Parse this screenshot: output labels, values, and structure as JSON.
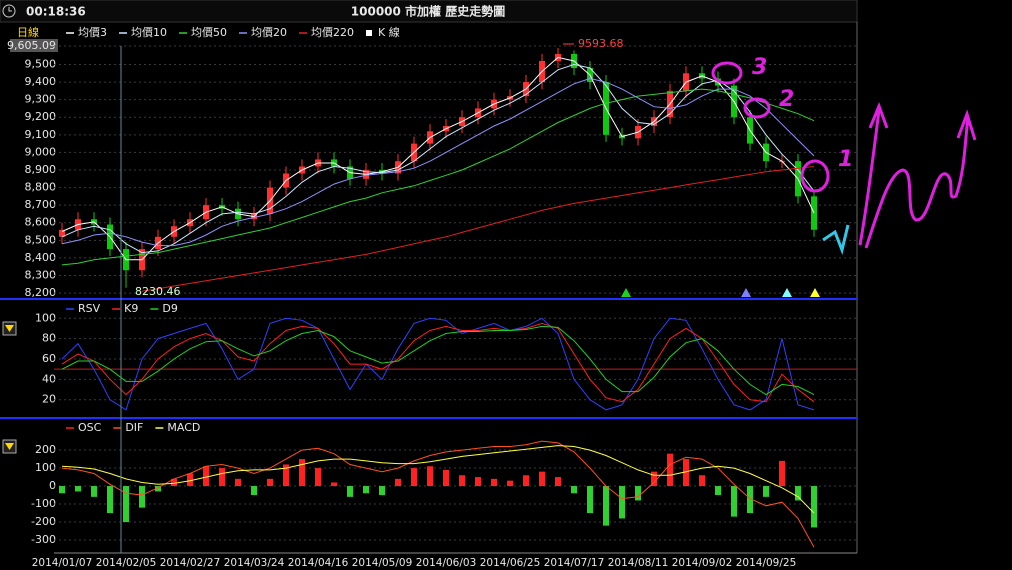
{
  "header": {
    "time": "00:18:36",
    "title": "100000 市加權  歷史走勢圖"
  },
  "handwriting": [
    "3",
    "2",
    "1"
  ],
  "chart_data": [
    {
      "type": "candlestick",
      "label": "日線",
      "grid": true,
      "annotations": [
        "9593.68",
        "8230.46"
      ],
      "categories": [
        "2014/01/07",
        null,
        null,
        null,
        "2014/02/05",
        null,
        null,
        null,
        "2014/02/27",
        null,
        null,
        null,
        "2014/03/24",
        null,
        null,
        null,
        "2014/04/16",
        null,
        null,
        null,
        "2014/05/09",
        null,
        null,
        null,
        "2014/06/03",
        null,
        null,
        null,
        "2014/06/25",
        null,
        null,
        null,
        "2014/07/17",
        null,
        null,
        null,
        "2014/08/11",
        null,
        null,
        null,
        "2014/09/02",
        null,
        null,
        null,
        "2014/09/25",
        null,
        null,
        null
      ],
      "ylim": [
        8172,
        9605.09
      ],
      "yticks": [
        {
          "value": 8200,
          "label": "8,200"
        },
        {
          "value": 8300,
          "label": "8,300"
        },
        {
          "value": 8400,
          "label": "8,400"
        },
        {
          "value": 8500,
          "label": "8,500"
        },
        {
          "value": 8600,
          "label": "8,600"
        },
        {
          "value": 8700,
          "label": "8,700"
        },
        {
          "value": 8800,
          "label": "8,800"
        },
        {
          "value": 8900,
          "label": "8,900"
        },
        {
          "value": 9000,
          "label": "9,000"
        },
        {
          "value": 9100,
          "label": "9,100"
        },
        {
          "value": 9200,
          "label": "9,200"
        },
        {
          "value": 9300,
          "label": "9,300"
        },
        {
          "value": 9400,
          "label": "9,400"
        },
        {
          "value": 9500,
          "label": "9,500"
        },
        {
          "value": 9605.09,
          "label": "9,605.09"
        }
      ],
      "candles": {
        "name": "K 線",
        "up_color": "#ff3030",
        "down_color": "#10c810",
        "open": [
          8520,
          8560,
          8620,
          8590,
          8450,
          8330,
          8450,
          8520,
          8580,
          8620,
          8700,
          8680,
          8620,
          8650,
          8800,
          8880,
          8920,
          8960,
          8920,
          8850,
          8900,
          8880,
          8950,
          9050,
          9120,
          9150,
          9200,
          9250,
          9300,
          9320,
          9400,
          9520,
          9560,
          9480,
          9400,
          9100,
          9080,
          9150,
          9200,
          9350,
          9450,
          9420,
          9380,
          9200,
          9050,
          8950,
          8950,
          8750
        ],
        "high": [
          8600,
          8660,
          8660,
          8630,
          8490,
          8490,
          8560,
          8620,
          8660,
          8740,
          8740,
          8720,
          8690,
          8840,
          8920,
          8960,
          9000,
          9000,
          8960,
          8940,
          8940,
          8990,
          9090,
          9160,
          9190,
          9240,
          9290,
          9340,
          9360,
          9440,
          9560,
          9593.68,
          9580,
          9520,
          9440,
          9140,
          9190,
          9240,
          9390,
          9490,
          9490,
          9460,
          9420,
          9240,
          9090,
          8990,
          8990,
          8790
        ],
        "low": [
          8480,
          8520,
          8550,
          8410,
          8230.46,
          8290,
          8410,
          8480,
          8540,
          8580,
          8640,
          8580,
          8580,
          8610,
          8760,
          8840,
          8880,
          8880,
          8810,
          8810,
          8840,
          8840,
          8910,
          9010,
          9080,
          9110,
          9160,
          9210,
          9260,
          9280,
          9360,
          9480,
          9440,
          9360,
          9060,
          9040,
          9040,
          9110,
          9160,
          9310,
          9380,
          9340,
          9160,
          9010,
          8910,
          8910,
          8710,
          8520
        ],
        "close": [
          8560,
          8620,
          8590,
          8450,
          8330,
          8450,
          8520,
          8580,
          8620,
          8700,
          8680,
          8620,
          8650,
          8800,
          8880,
          8920,
          8960,
          8920,
          8850,
          8900,
          8880,
          8950,
          9050,
          9120,
          9150,
          9200,
          9250,
          9300,
          9320,
          9400,
          9520,
          9560,
          9480,
          9400,
          9100,
          9080,
          9150,
          9200,
          9350,
          9450,
          9420,
          9380,
          9200,
          9050,
          8950,
          8950,
          8750,
          8560
        ]
      },
      "series": [
        {
          "name": "均價3",
          "color": "#ffffff",
          "values": [
            8550,
            8590,
            8605,
            8520,
            8390,
            8390,
            8485,
            8550,
            8600,
            8660,
            8690,
            8650,
            8635,
            8725,
            8840,
            8900,
            8940,
            8940,
            8885,
            8875,
            8890,
            8915,
            9000,
            9085,
            9135,
            9175,
            9225,
            9275,
            9310,
            9360,
            9460,
            9540,
            9520,
            9440,
            9250,
            9090,
            9115,
            9175,
            9275,
            9400,
            9435,
            9400,
            9290,
            9125,
            9000,
            8950,
            8850,
            8655
          ]
        },
        {
          "name": "均價10",
          "color": "#c8e8ff",
          "values": [
            8520,
            8560,
            8580,
            8560,
            8480,
            8430,
            8440,
            8480,
            8540,
            8600,
            8650,
            8660,
            8650,
            8680,
            8750,
            8830,
            8890,
            8920,
            8910,
            8890,
            8885,
            8900,
            8950,
            9020,
            9090,
            9140,
            9190,
            9240,
            9280,
            9330,
            9400,
            9470,
            9500,
            9480,
            9380,
            9250,
            9170,
            9160,
            9220,
            9320,
            9390,
            9410,
            9350,
            9230,
            9100,
            8990,
            8900,
            8780
          ]
        },
        {
          "name": "均價50",
          "color": "#30d030",
          "values": [
            8360,
            8370,
            8390,
            8400,
            8410,
            8420,
            8430,
            8450,
            8470,
            8490,
            8510,
            8530,
            8550,
            8570,
            8600,
            8630,
            8660,
            8690,
            8720,
            8740,
            8770,
            8790,
            8810,
            8840,
            8870,
            8900,
            8940,
            8980,
            9020,
            9070,
            9120,
            9170,
            9210,
            9250,
            9280,
            9300,
            9320,
            9330,
            9340,
            9350,
            9360,
            9350,
            9330,
            9310,
            9280,
            9250,
            9220,
            9180
          ]
        },
        {
          "name": "均價20",
          "color": "#9090ff",
          "values": [
            8480,
            8500,
            8530,
            8540,
            8520,
            8490,
            8470,
            8470,
            8490,
            8530,
            8580,
            8610,
            8630,
            8650,
            8680,
            8720,
            8770,
            8820,
            8850,
            8870,
            8880,
            8890,
            8910,
            8950,
            9000,
            9050,
            9100,
            9150,
            9190,
            9240,
            9290,
            9340,
            9390,
            9420,
            9400,
            9360,
            9310,
            9260,
            9250,
            9270,
            9320,
            9360,
            9360,
            9320,
            9250,
            9160,
            9070,
            8980
          ]
        },
        {
          "name": "均價220",
          "color": "#e02020",
          "values": [
            null,
            null,
            null,
            null,
            null,
            8210,
            8225,
            8240,
            8255,
            8270,
            8285,
            8300,
            8315,
            8330,
            8345,
            8360,
            8375,
            8390,
            8405,
            8420,
            8440,
            8460,
            8480,
            8500,
            8520,
            8545,
            8570,
            8595,
            8620,
            8645,
            8670,
            8690,
            8710,
            8725,
            8740,
            8755,
            8770,
            8785,
            8800,
            8815,
            8830,
            8845,
            8860,
            8875,
            8890,
            8900,
            8910,
            8920
          ]
        }
      ]
    },
    {
      "type": "line",
      "grid": true,
      "ylim": [
        3,
        115
      ],
      "yticks": [
        20,
        40,
        60,
        80,
        100
      ],
      "hline": 50,
      "hline_color": "#c02020",
      "series": [
        {
          "name": "RSV",
          "color": "#3040ff",
          "values": [
            60,
            75,
            50,
            20,
            10,
            60,
            80,
            85,
            90,
            95,
            70,
            40,
            50,
            95,
            100,
            98,
            90,
            60,
            30,
            55,
            40,
            70,
            95,
            100,
            98,
            85,
            90,
            95,
            88,
            92,
            100,
            85,
            40,
            20,
            10,
            15,
            40,
            80,
            100,
            98,
            70,
            40,
            15,
            10,
            20,
            80,
            15,
            10
          ]
        },
        {
          "name": "K9",
          "color": "#ff2020",
          "values": [
            55,
            65,
            58,
            40,
            25,
            40,
            60,
            72,
            80,
            85,
            78,
            62,
            58,
            75,
            88,
            92,
            90,
            75,
            55,
            55,
            50,
            60,
            78,
            88,
            92,
            88,
            88,
            90,
            88,
            90,
            95,
            90,
            65,
            40,
            22,
            18,
            30,
            55,
            80,
            90,
            80,
            58,
            35,
            20,
            18,
            45,
            30,
            18
          ]
        },
        {
          "name": "D9",
          "color": "#20d020",
          "values": [
            50,
            58,
            58,
            50,
            38,
            38,
            48,
            60,
            70,
            77,
            78,
            70,
            63,
            68,
            78,
            85,
            88,
            82,
            68,
            62,
            56,
            58,
            68,
            78,
            85,
            87,
            87,
            88,
            88,
            89,
            92,
            91,
            78,
            60,
            40,
            28,
            28,
            42,
            62,
            76,
            80,
            68,
            50,
            35,
            25,
            35,
            33,
            25
          ]
        }
      ]
    },
    {
      "type": "combo",
      "grid": true,
      "ylim": [
        -372,
        367
      ],
      "yticks": [
        -300,
        -200,
        -100,
        0,
        100,
        200
      ],
      "series": [
        {
          "name": "OSC",
          "type": "bar",
          "color": "#ff2020",
          "neg_color": "#30d030",
          "values": [
            -40,
            -30,
            -60,
            -150,
            -200,
            -120,
            -30,
            40,
            70,
            110,
            100,
            40,
            -50,
            40,
            120,
            150,
            100,
            20,
            -60,
            -40,
            -50,
            40,
            100,
            110,
            90,
            60,
            50,
            40,
            30,
            60,
            80,
            50,
            -40,
            -150,
            -220,
            -180,
            -80,
            80,
            180,
            150,
            60,
            -50,
            -170,
            -150,
            -60,
            140,
            -80,
            -230
          ]
        },
        {
          "name": "DIF",
          "type": "line",
          "color": "#ff5020",
          "values": [
            100,
            90,
            70,
            10,
            -40,
            -50,
            -10,
            40,
            70,
            110,
            120,
            100,
            70,
            100,
            150,
            200,
            210,
            180,
            120,
            100,
            80,
            100,
            140,
            170,
            190,
            200,
            210,
            220,
            220,
            230,
            250,
            240,
            190,
            100,
            0,
            -70,
            -60,
            20,
            120,
            160,
            150,
            100,
            10,
            -70,
            -110,
            -90,
            -180,
            -340
          ]
        },
        {
          "name": "MACD",
          "type": "line",
          "color": "#ffff40",
          "values": [
            110,
            105,
            95,
            70,
            40,
            20,
            10,
            15,
            30,
            50,
            70,
            85,
            90,
            90,
            100,
            120,
            140,
            150,
            150,
            140,
            130,
            125,
            125,
            135,
            150,
            165,
            175,
            185,
            195,
            205,
            215,
            225,
            220,
            200,
            170,
            130,
            90,
            60,
            60,
            80,
            100,
            110,
            100,
            70,
            30,
            -10,
            -60,
            -150
          ]
        }
      ]
    }
  ]
}
